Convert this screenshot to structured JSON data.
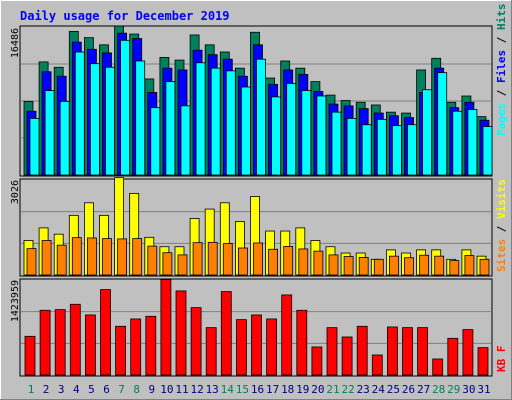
{
  "title": "Daily usage for December 2019",
  "colors": {
    "hits": "#00805c",
    "files": "#0000ff",
    "pages": "#00ffff",
    "visits": "#ffff00",
    "sites": "#ff8000",
    "kbf": "#ff0000",
    "panel": "#c0c0c0",
    "frame": "#c0c0c0",
    "title_text": "#0000ff",
    "weekend_day": "#00805c",
    "weekday_day": "#000080"
  },
  "chart_data": [
    {
      "type": "bar",
      "name": "hits-files-pages",
      "ymax_label": "16486",
      "ylim": [
        0,
        16486
      ],
      "legend": [
        "Hits",
        "Files",
        "Pages"
      ],
      "categories": [
        "1",
        "2",
        "3",
        "4",
        "5",
        "6",
        "7",
        "8",
        "9",
        "10",
        "11",
        "12",
        "13",
        "14",
        "15",
        "16",
        "17",
        "18",
        "19",
        "20",
        "21",
        "22",
        "23",
        "24",
        "25",
        "26",
        "27",
        "28",
        "29",
        "30",
        "31"
      ],
      "series": [
        {
          "name": "Hits",
          "values": [
            8200,
            12600,
            12000,
            16000,
            15300,
            14500,
            16600,
            15700,
            10700,
            13100,
            12800,
            15600,
            14500,
            13700,
            11900,
            15900,
            10800,
            12700,
            11900,
            10400,
            8900,
            8300,
            8100,
            7800,
            7000,
            6900,
            11700,
            13000,
            8100,
            8800,
            6500
          ]
        },
        {
          "name": "Files",
          "values": [
            7100,
            11500,
            11000,
            14800,
            14000,
            13600,
            15800,
            15200,
            9200,
            11900,
            11700,
            13900,
            13400,
            12900,
            11000,
            14500,
            10100,
            11700,
            11200,
            9300,
            7900,
            7700,
            7400,
            6900,
            6600,
            6400,
            9200,
            11900,
            7500,
            8100,
            6100
          ]
        },
        {
          "name": "Pages",
          "values": [
            6300,
            9400,
            8200,
            13700,
            12400,
            12000,
            15000,
            12700,
            7500,
            10400,
            7700,
            12500,
            11900,
            11600,
            9800,
            12900,
            8700,
            10200,
            9400,
            8800,
            7000,
            6300,
            5600,
            6200,
            5500,
            5600,
            9500,
            11400,
            7100,
            7300,
            5400
          ]
        }
      ]
    },
    {
      "type": "bar",
      "name": "visits-sites",
      "ymax_label": "3026",
      "ylim": [
        0,
        3026
      ],
      "legend": [
        "Visits",
        "Sites"
      ],
      "series": [
        {
          "name": "Visits",
          "values": [
            1100,
            1500,
            1300,
            1900,
            2300,
            1900,
            3100,
            2600,
            1200,
            900,
            900,
            1800,
            2100,
            2300,
            1700,
            2500,
            1400,
            1400,
            1500,
            1100,
            900,
            700,
            700,
            500,
            800,
            700,
            800,
            800,
            500,
            800,
            600
          ]
        },
        {
          "name": "Sites",
          "values": [
            840,
            1100,
            950,
            1190,
            1180,
            1160,
            1150,
            1160,
            920,
            710,
            640,
            1030,
            1040,
            1000,
            860,
            1020,
            820,
            910,
            830,
            760,
            640,
            590,
            560,
            500,
            600,
            550,
            630,
            600,
            460,
            620,
            500
          ]
        }
      ]
    },
    {
      "type": "bar",
      "name": "kbf",
      "ymax_label": "1423959",
      "ylim": [
        0,
        1423959
      ],
      "legend": [
        "KB F"
      ],
      "series": [
        {
          "name": "KB F",
          "values": [
            580000,
            970000,
            980000,
            1060000,
            900000,
            1280000,
            730000,
            840000,
            880000,
            1430000,
            1260000,
            1010000,
            710000,
            1250000,
            830000,
            900000,
            840000,
            1200000,
            970000,
            420000,
            710000,
            570000,
            730000,
            300000,
            720000,
            710000,
            710000,
            240000,
            550000,
            680000,
            410000
          ]
        }
      ]
    }
  ]
}
